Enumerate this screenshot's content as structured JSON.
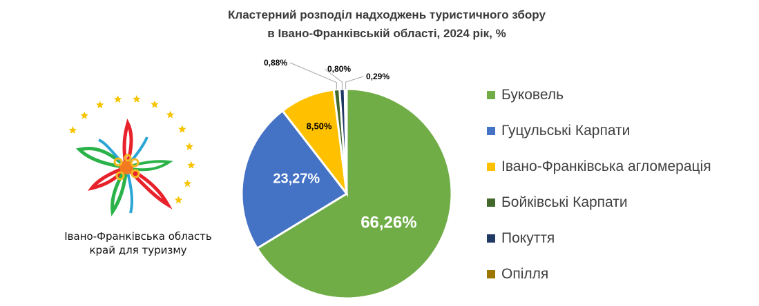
{
  "chart_data": {
    "type": "pie",
    "title": [
      "Кластерний розподіл надходжень туристичного збору",
      "в Івано-Франківській області, 2024 рік, %"
    ],
    "series": [
      {
        "name": "Буковель",
        "value": 66.26,
        "label": "66,26%",
        "color": "#70ad47"
      },
      {
        "name": "Гуцульські Карпати",
        "value": 23.27,
        "label": "23,27%",
        "color": "#4472c4"
      },
      {
        "name": "Івано-Франківська агломерація",
        "value": 8.5,
        "label": "8,50%",
        "color": "#ffc000"
      },
      {
        "name": "Бойківські Карпати",
        "value": 0.88,
        "label": "0,88%",
        "color": "#43682b"
      },
      {
        "name": "Покуття",
        "value": 0.8,
        "label": "0,80%",
        "color": "#203864"
      },
      {
        "name": "Опілля",
        "value": 0.29,
        "label": "0,29%",
        "color": "#9c7600"
      }
    ],
    "legend_position": "right"
  },
  "logo": {
    "caption_line1": "Івано-Франківська область",
    "caption_line2": "край для туризму"
  }
}
